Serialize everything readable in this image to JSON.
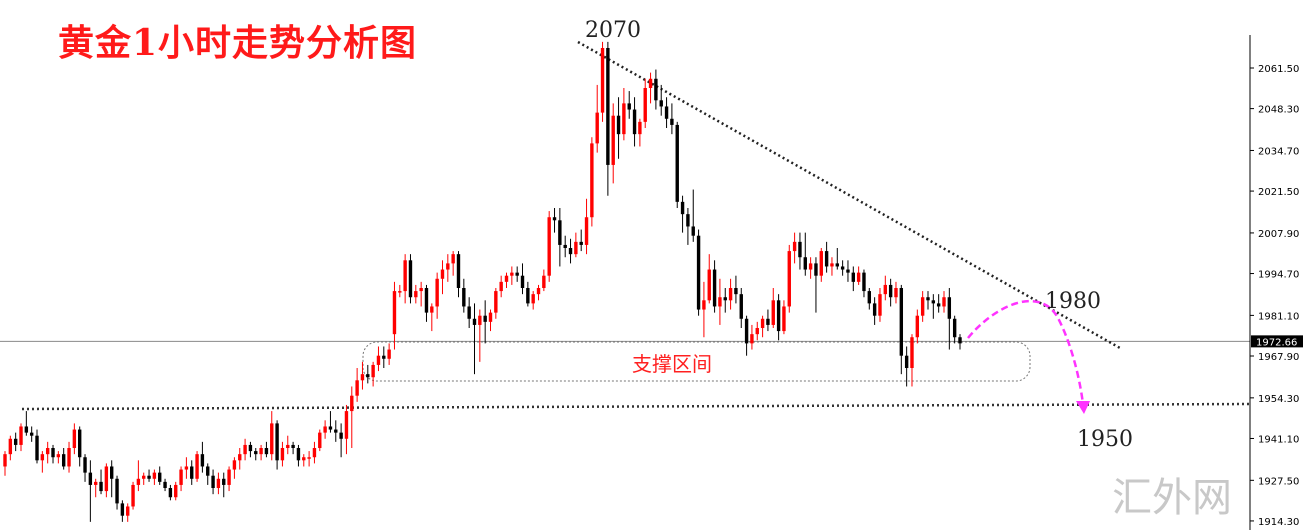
{
  "title": "黄金1小时走势分析图",
  "watermark": "汇外网",
  "colors": {
    "up": "#ff0000",
    "down": "#000000",
    "forecast": "#ff33ff",
    "title": "#ff1a1a"
  },
  "chart_data": {
    "type": "candlestick",
    "title": "黄金1小时走势分析图",
    "ylim": [
      1911,
      2075
    ],
    "y_ticks": [
      "2061.50",
      "2048.30",
      "2034.70",
      "2021.50",
      "2007.90",
      "1994.70",
      "1981.10",
      "1967.90",
      "1954.30",
      "1941.10",
      "1927.50",
      "1914.30"
    ],
    "current_price": "1972.66",
    "annotations": {
      "high": "2070",
      "resistance": "1980",
      "target": "1950",
      "support_zone": "支撑区间"
    },
    "candles_ohlc": [
      [
        1932,
        1937,
        1929,
        1936
      ],
      [
        1936,
        1942,
        1934,
        1941
      ],
      [
        1941,
        1943,
        1937,
        1939
      ],
      [
        1939,
        1946,
        1937,
        1945
      ],
      [
        1945,
        1950,
        1942,
        1943
      ],
      [
        1943,
        1945,
        1940,
        1942
      ],
      [
        1942,
        1944,
        1933,
        1934
      ],
      [
        1934,
        1937,
        1930,
        1936
      ],
      [
        1936,
        1940,
        1933,
        1938
      ],
      [
        1938,
        1939,
        1933,
        1935
      ],
      [
        1935,
        1937,
        1933,
        1936
      ],
      [
        1936,
        1938,
        1931,
        1932
      ],
      [
        1932,
        1940,
        1930,
        1938
      ],
      [
        1938,
        1946,
        1936,
        1944
      ],
      [
        1944,
        1945,
        1932,
        1935
      ],
      [
        1935,
        1936,
        1927,
        1930
      ],
      [
        1930,
        1934,
        1914,
        1926
      ],
      [
        1926,
        1928,
        1922,
        1927
      ],
      [
        1927,
        1931,
        1923,
        1924
      ],
      [
        1924,
        1933,
        1922,
        1932
      ],
      [
        1932,
        1934,
        1922,
        1928
      ],
      [
        1928,
        1929,
        1918,
        1920
      ],
      [
        1920,
        1921,
        1914,
        1916
      ],
      [
        1916,
        1920,
        1914,
        1919
      ],
      [
        1919,
        1927,
        1918,
        1926
      ],
      [
        1926,
        1934,
        1924,
        1928
      ],
      [
        1928,
        1930,
        1926,
        1929
      ],
      [
        1929,
        1931,
        1927,
        1928
      ],
      [
        1928,
        1931,
        1926,
        1930
      ],
      [
        1930,
        1932,
        1926,
        1927
      ],
      [
        1927,
        1928,
        1924,
        1925
      ],
      [
        1925,
        1926,
        1921,
        1922
      ],
      [
        1922,
        1927,
        1921,
        1926
      ],
      [
        1926,
        1932,
        1924,
        1931
      ],
      [
        1931,
        1935,
        1928,
        1932
      ],
      [
        1932,
        1934,
        1926,
        1928
      ],
      [
        1928,
        1937,
        1927,
        1936
      ],
      [
        1936,
        1940,
        1930,
        1932
      ],
      [
        1932,
        1933,
        1926,
        1929
      ],
      [
        1929,
        1931,
        1923,
        1925
      ],
      [
        1925,
        1930,
        1923,
        1928
      ],
      [
        1928,
        1930,
        1922,
        1926
      ],
      [
        1926,
        1932,
        1924,
        1931
      ],
      [
        1931,
        1935,
        1928,
        1934
      ],
      [
        1934,
        1938,
        1931,
        1936
      ],
      [
        1936,
        1941,
        1934,
        1939
      ],
      [
        1939,
        1940,
        1935,
        1937
      ],
      [
        1937,
        1938,
        1934,
        1936
      ],
      [
        1936,
        1939,
        1934,
        1938
      ],
      [
        1938,
        1940,
        1935,
        1936
      ],
      [
        1936,
        1950,
        1934,
        1946
      ],
      [
        1946,
        1947,
        1931,
        1934
      ],
      [
        1934,
        1940,
        1932,
        1938
      ],
      [
        1938,
        1942,
        1936,
        1939
      ],
      [
        1939,
        1940,
        1936,
        1938
      ],
      [
        1938,
        1939,
        1932,
        1934
      ],
      [
        1934,
        1936,
        1932,
        1935
      ],
      [
        1935,
        1937,
        1932,
        1935
      ],
      [
        1935,
        1940,
        1933,
        1938
      ],
      [
        1938,
        1944,
        1937,
        1943
      ],
      [
        1943,
        1947,
        1941,
        1945
      ],
      [
        1945,
        1950,
        1943,
        1944
      ],
      [
        1944,
        1947,
        1940,
        1943
      ],
      [
        1943,
        1946,
        1935,
        1941
      ],
      [
        1941,
        1952,
        1936,
        1950
      ],
      [
        1950,
        1958,
        1938,
        1955
      ],
      [
        1955,
        1964,
        1953,
        1960
      ],
      [
        1960,
        1966,
        1957,
        1962
      ],
      [
        1962,
        1965,
        1959,
        1961
      ],
      [
        1961,
        1966,
        1958,
        1965
      ],
      [
        1965,
        1971,
        1963,
        1968
      ],
      [
        1968,
        1971,
        1964,
        1967
      ],
      [
        1967,
        1972,
        1965,
        1970
      ],
      [
        1975,
        1992,
        1970,
        1989
      ],
      [
        1989,
        1991,
        1987,
        1989
      ],
      [
        1989,
        2001,
        1985,
        1999
      ],
      [
        1999,
        2001,
        1985,
        1987
      ],
      [
        1987,
        1991,
        1985,
        1989
      ],
      [
        1989,
        1992,
        1984,
        1990
      ],
      [
        1990,
        1991,
        1979,
        1982
      ],
      [
        1982,
        1985,
        1976,
        1984
      ],
      [
        1984,
        1995,
        1980,
        1993
      ],
      [
        1993,
        1999,
        1988,
        1996
      ],
      [
        1996,
        2001,
        1992,
        1998
      ],
      [
        1998,
        2002,
        1994,
        2001
      ],
      [
        2001,
        2002,
        1987,
        1990
      ],
      [
        1990,
        1993,
        1982,
        1984
      ],
      [
        1984,
        1987,
        1977,
        1980
      ],
      [
        1980,
        1985,
        1962,
        1978
      ],
      [
        1978,
        1983,
        1966,
        1981
      ],
      [
        1981,
        1986,
        1972,
        1979
      ],
      [
        1979,
        1983,
        1976,
        1982
      ],
      [
        1982,
        1990,
        1980,
        1989
      ],
      [
        1989,
        1994,
        1987,
        1992
      ],
      [
        1992,
        1995,
        1990,
        1994
      ],
      [
        1994,
        1997,
        1991,
        1995
      ],
      [
        1995,
        1997,
        1992,
        1994
      ],
      [
        1994,
        1998,
        1988,
        1990
      ],
      [
        1990,
        1992,
        1984,
        1985
      ],
      [
        1985,
        1989,
        1983,
        1988
      ],
      [
        1988,
        1991,
        1986,
        1990
      ],
      [
        1990,
        1996,
        1989,
        1994
      ],
      [
        1994,
        2015,
        1992,
        2013
      ],
      [
        2013,
        2016,
        2008,
        2012
      ],
      [
        2012,
        2016,
        1997,
        2004
      ],
      [
        2004,
        2007,
        2000,
        2003
      ],
      [
        2003,
        2006,
        1998,
        2001
      ],
      [
        2001,
        2008,
        2000,
        2005
      ],
      [
        2005,
        2009,
        2002,
        2004
      ],
      [
        2004,
        2019,
        2001,
        2013
      ],
      [
        2013,
        2039,
        2010,
        2037
      ],
      [
        2037,
        2056,
        2034,
        2047
      ],
      [
        2047,
        2070,
        2044,
        2068
      ],
      [
        2068,
        2070,
        2020,
        2030
      ],
      [
        2030,
        2050,
        2024,
        2046
      ],
      [
        2046,
        2052,
        2032,
        2040
      ],
      [
        2040,
        2055,
        2038,
        2050
      ],
      [
        2050,
        2054,
        2045,
        2048
      ],
      [
        2048,
        2052,
        2036,
        2040
      ],
      [
        2040,
        2045,
        2036,
        2044
      ],
      [
        2044,
        2058,
        2042,
        2055
      ],
      [
        2055,
        2060,
        2050,
        2058
      ],
      [
        2058,
        2061,
        2048,
        2051
      ],
      [
        2051,
        2056,
        2046,
        2049
      ],
      [
        2049,
        2052,
        2042,
        2045
      ],
      [
        2045,
        2050,
        2040,
        2043
      ],
      [
        2043,
        2044,
        2016,
        2018
      ],
      [
        2018,
        2020,
        2008,
        2014
      ],
      [
        2014,
        2016,
        2004,
        2010
      ],
      [
        2010,
        2022,
        2005,
        2007
      ],
      [
        2007,
        2009,
        1981,
        1983
      ],
      [
        1983,
        1992,
        1974,
        1986
      ],
      [
        1986,
        2001,
        1985,
        1996
      ],
      [
        1996,
        1999,
        1982,
        1984
      ],
      [
        1984,
        1993,
        1978,
        1987
      ],
      [
        1987,
        1990,
        1982,
        1986
      ],
      [
        1986,
        1993,
        1983,
        1990
      ],
      [
        1990,
        1994,
        1985,
        1988
      ],
      [
        1988,
        1990,
        1977,
        1980
      ],
      [
        1980,
        1981,
        1968,
        1972
      ],
      [
        1972,
        1978,
        1970,
        1975
      ],
      [
        1975,
        1979,
        1973,
        1977
      ],
      [
        1977,
        1981,
        1974,
        1980
      ],
      [
        1980,
        1983,
        1976,
        1978
      ],
      [
        1978,
        1990,
        1977,
        1986
      ],
      [
        1986,
        1988,
        1973,
        1976
      ],
      [
        1976,
        1986,
        1975,
        1984
      ],
      [
        1984,
        2004,
        1982,
        2002
      ],
      [
        2002,
        2008,
        1998,
        2005
      ],
      [
        2005,
        2008,
        1996,
        2000
      ],
      [
        2000,
        2008,
        1994,
        1996
      ],
      [
        1996,
        2000,
        1993,
        1998
      ],
      [
        1998,
        2000,
        1982,
        1994
      ],
      [
        1994,
        2003,
        1992,
        2002
      ],
      [
        2002,
        2005,
        1995,
        1997
      ],
      [
        1997,
        2000,
        1994,
        1998
      ],
      [
        1998,
        2003,
        1996,
        1997
      ],
      [
        1997,
        1999,
        1994,
        1996
      ],
      [
        1996,
        1999,
        1992,
        1995
      ],
      [
        1995,
        1997,
        1989,
        1992
      ],
      [
        1992,
        1997,
        1991,
        1995
      ],
      [
        1995,
        1996,
        1987,
        1989
      ],
      [
        1989,
        1990,
        1983,
        1985
      ],
      [
        1985,
        1987,
        1978,
        1981
      ],
      [
        1981,
        1990,
        1979,
        1988
      ],
      [
        1988,
        1994,
        1986,
        1991
      ],
      [
        1991,
        1993,
        1984,
        1987
      ],
      [
        1987,
        1992,
        1985,
        1990
      ],
      [
        1990,
        1991,
        1962,
        1968
      ],
      [
        1968,
        1971,
        1958,
        1964
      ],
      [
        1964,
        1975,
        1958,
        1974
      ],
      [
        1974,
        1983,
        1972,
        1981
      ],
      [
        1981,
        1989,
        1979,
        1987
      ],
      [
        1987,
        1989,
        1983,
        1986
      ],
      [
        1986,
        1988,
        1980,
        1985
      ],
      [
        1985,
        1988,
        1982,
        1984
      ],
      [
        1984,
        1989,
        1982,
        1987
      ],
      [
        1987,
        1990,
        1970,
        1980
      ],
      [
        1980,
        1981,
        1972,
        1974
      ],
      [
        1974,
        1975,
        1970,
        1972
      ]
    ]
  }
}
